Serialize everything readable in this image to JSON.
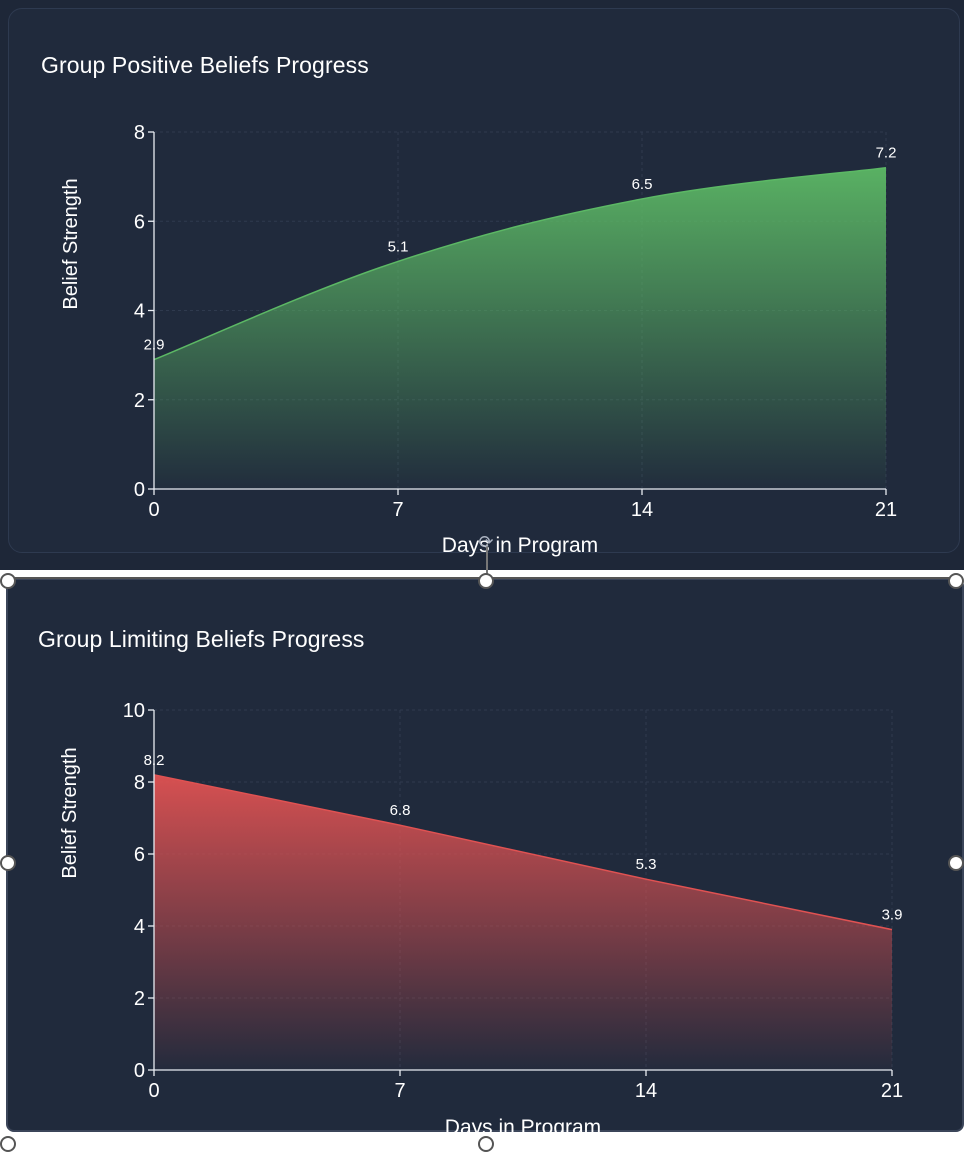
{
  "chart_data": [
    {
      "type": "area",
      "title": "Group Positive Beliefs Progress",
      "xlabel": "Days in Program",
      "ylabel": "Belief Strength",
      "x": [
        0,
        7,
        14,
        21
      ],
      "values": [
        2.9,
        5.1,
        6.5,
        7.2
      ],
      "data_labels": [
        "2.9",
        "5.1",
        "6.5",
        "7.2"
      ],
      "xticks": [
        "0",
        "7",
        "14",
        "21"
      ],
      "yticks": [
        "0",
        "2",
        "4",
        "6",
        "8"
      ],
      "xlim": [
        0,
        21
      ],
      "ylim": [
        0,
        8
      ],
      "curve": "smooth",
      "grid": true,
      "color": "#5cb865"
    },
    {
      "type": "area",
      "title": "Group Limiting Beliefs Progress",
      "xlabel": "Days in Program",
      "ylabel": "Belief Strength",
      "x": [
        0,
        7,
        14,
        21
      ],
      "values": [
        8.2,
        6.8,
        5.3,
        3.9
      ],
      "data_labels": [
        "8.2",
        "6.8",
        "5.3",
        "3.9"
      ],
      "xticks": [
        "0",
        "7",
        "14",
        "21"
      ],
      "yticks": [
        "0",
        "2",
        "4",
        "6",
        "8",
        "10"
      ],
      "xlim": [
        0,
        21
      ],
      "ylim": [
        0,
        10
      ],
      "curve": "linear",
      "grid": true,
      "color": "#e05252"
    }
  ],
  "colors": {
    "background": "#1e2738",
    "card": "#202a3c",
    "axis": "#e8ecf2",
    "grid": "#2f3a4e",
    "text": "#ffffff"
  },
  "selection": {
    "handle_icon": "resize-handle-icon",
    "rotate_icon": "rotate-handle-icon"
  }
}
